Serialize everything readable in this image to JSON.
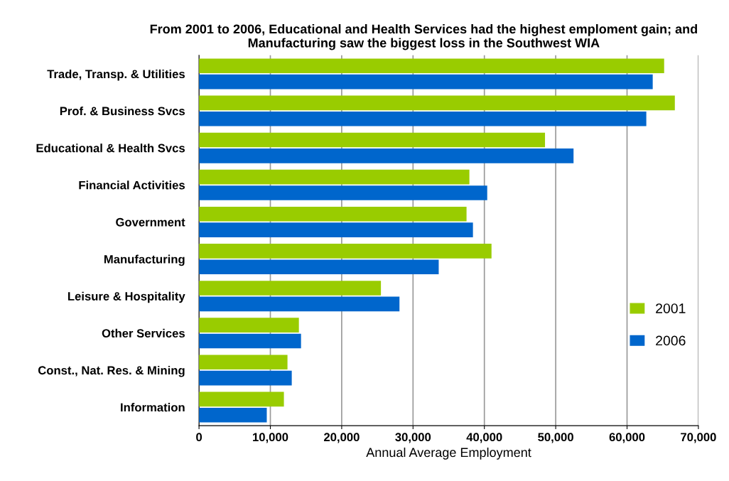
{
  "chart_data": {
    "type": "bar",
    "orientation": "horizontal",
    "title": "From 2001 to 2006, Educational and Health Services had the highest emploment gain; and Manufacturing saw the biggest loss in the Southwest WIA",
    "xlabel": "Annual Average Employment",
    "categories": [
      "Trade, Transp. & Utilities",
      "Prof. & Business Svcs",
      "Educational & Health Svcs",
      "Financial Activities",
      "Government",
      "Manufacturing",
      "Leisure & Hospitality",
      "Other Services",
      "Const., Nat. Res. & Mining",
      "Information"
    ],
    "series": [
      {
        "name": "2001",
        "color": "#99cc00",
        "values": [
          65200,
          66700,
          48500,
          37900,
          37500,
          41000,
          25500,
          14000,
          12400,
          11900
        ]
      },
      {
        "name": "2006",
        "color": "#0066cc",
        "values": [
          63600,
          62700,
          52500,
          40400,
          38400,
          33600,
          28100,
          14300,
          13000,
          9500
        ]
      }
    ],
    "xlim": [
      0,
      70000
    ],
    "xticks": [
      {
        "value": 0,
        "label": "0"
      },
      {
        "value": 10000,
        "label": "10,000"
      },
      {
        "value": 20000,
        "label": "20,000"
      },
      {
        "value": 30000,
        "label": "30,000"
      },
      {
        "value": 40000,
        "label": "40,000"
      },
      {
        "value": 50000,
        "label": "50,000"
      },
      {
        "value": 60000,
        "label": "60,000"
      },
      {
        "value": 70000,
        "label": "70,000"
      }
    ],
    "grid": "x",
    "legend": "right"
  }
}
